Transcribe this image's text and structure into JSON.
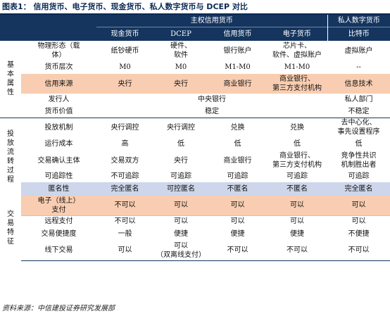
{
  "title": "图表1： 信用货币、电子货币、现金货币、私人数字货币与 DCEP 对比",
  "source": "资料来源：中信建投证券研究发展部",
  "header": {
    "group_sovereign": "主权信用货币",
    "group_private": "私人数字货币",
    "columns": [
      "现金货币",
      "DCEP",
      "信用货币",
      "电子货币",
      "比特币"
    ]
  },
  "sections": {
    "basic": [
      "基",
      "本",
      "属",
      "性"
    ],
    "circulation": [
      "投",
      "放",
      "流",
      "转",
      "过",
      "程"
    ],
    "trading": [
      "交",
      "易",
      "特",
      "征"
    ]
  },
  "rows": {
    "physical_form": {
      "label": [
        "物理形态（载",
        "体）"
      ],
      "cash": "纸钞硬币",
      "dcep": [
        "硬件、",
        "软件"
      ],
      "credit": "银行账户",
      "electronic": [
        "芯片卡、",
        "软件、虚拟账户"
      ],
      "bitcoin": "虚拟账户"
    },
    "money_level": {
      "label": "货币层次",
      "cash": "M0",
      "dcep": "M0",
      "credit": "M1-M0",
      "electronic": "M1-M0",
      "bitcoin": "--"
    },
    "credit_source": {
      "label": "信用来源",
      "cash": "央行",
      "dcep": "央行",
      "credit": "商业银行",
      "electronic": [
        "商业银行、",
        "第三方支付机构"
      ],
      "bitcoin": "信息技术"
    },
    "issuer": {
      "label": "发行人",
      "sovereign": "中央银行",
      "bitcoin": "私人部门"
    },
    "currency_value": {
      "label": "货币价值",
      "sovereign": "稳定",
      "bitcoin": "不稳定"
    },
    "issuance_mechanism": {
      "label": "投放机制",
      "cash": "央行调控",
      "dcep": "央行调控",
      "credit": "兑换",
      "electronic": "兑换",
      "bitcoin": [
        "去中心化、",
        "事先设置程序"
      ]
    },
    "operating_cost": {
      "label": "运行成本",
      "cash": "高",
      "dcep": "低",
      "credit": "低",
      "electronic": "低",
      "bitcoin": "低"
    },
    "confirmation_subject": {
      "label": "交易确认主体",
      "cash": "交易双方",
      "dcep": "央行",
      "credit": "商业银行",
      "electronic": [
        "商业银行、",
        "第三方支付机构"
      ],
      "bitcoin": [
        "竞争性共识",
        "机制胜出者"
      ]
    },
    "traceability": {
      "label": "可追踪性",
      "cash": "不可追踪",
      "dcep": "可追踪",
      "credit": "可追踪",
      "electronic": "可追踪",
      "bitcoin": "可追踪"
    },
    "anonymity": {
      "label": "匿名性",
      "cash": "完全匿名",
      "dcep": "可控匿名",
      "credit": "不匿名",
      "electronic": "不匿名",
      "bitcoin": "完全匿名"
    },
    "online_payment": {
      "label": [
        "电子（线上）",
        "支付"
      ],
      "cash": "不可以",
      "dcep": "可以",
      "credit": "可以",
      "electronic": "可以",
      "bitcoin": "可以"
    },
    "remote_payment": {
      "label": "远程支付",
      "cash": "不可以",
      "dcep": "可以",
      "credit": "可以",
      "electronic": "可以",
      "bitcoin": "可以"
    },
    "convenience": {
      "label": "交易便捷度",
      "cash": "一般",
      "dcep": "便捷",
      "credit": "便捷",
      "electronic": "便捷",
      "bitcoin": "不便捷"
    },
    "offline_trading": {
      "label": "线下交易",
      "cash": "可以",
      "dcep": [
        "可以",
        "（双离线支付）"
      ],
      "credit": "不可以",
      "electronic": "不可以",
      "bitcoin": "不可以"
    }
  }
}
